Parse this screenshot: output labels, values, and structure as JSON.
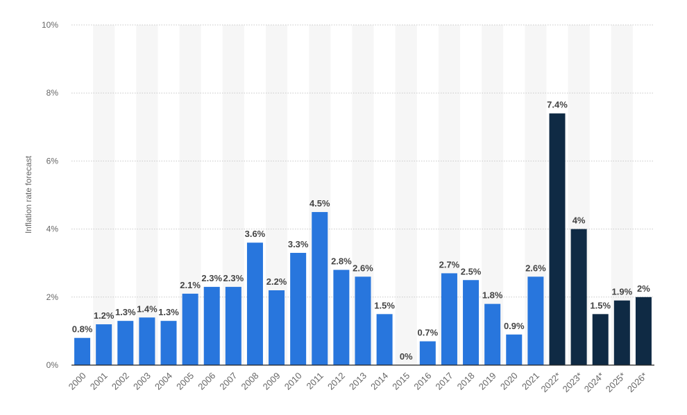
{
  "chart_data": {
    "type": "bar",
    "title": "",
    "xlabel": "",
    "ylabel": "Inflation rate forecast",
    "ylim": [
      0,
      10
    ],
    "yticks": [
      0,
      2,
      4,
      6,
      8,
      10
    ],
    "ytick_labels": [
      "0%",
      "2%",
      "4%",
      "6%",
      "8%",
      "10%"
    ],
    "grid": true,
    "categories": [
      "2000",
      "2001",
      "2002",
      "2003",
      "2004",
      "2005",
      "2006",
      "2007",
      "2008",
      "2009",
      "2010",
      "2011",
      "2012",
      "2013",
      "2014",
      "2015",
      "2016",
      "2017",
      "2018",
      "2019",
      "2020",
      "2021",
      "2022*",
      "2023*",
      "2024*",
      "2025*",
      "2026*"
    ],
    "values": [
      0.8,
      1.2,
      1.3,
      1.4,
      1.3,
      2.1,
      2.3,
      2.3,
      3.6,
      2.2,
      3.3,
      4.5,
      2.8,
      2.6,
      1.5,
      0,
      0.7,
      2.7,
      2.5,
      1.8,
      0.9,
      2.6,
      7.4,
      4,
      1.5,
      1.9,
      2
    ],
    "value_labels": [
      "0.8%",
      "1.2%",
      "1.3%",
      "1.4%",
      "1.3%",
      "2.1%",
      "2.3%",
      "2.3%",
      "3.6%",
      "2.2%",
      "3.3%",
      "4.5%",
      "2.8%",
      "2.6%",
      "1.5%",
      "0%",
      "0.7%",
      "2.7%",
      "2.5%",
      "1.8%",
      "0.9%",
      "2.6%",
      "7.4%",
      "4%",
      "1.5%",
      "1.9%",
      "2%"
    ],
    "forecast_from_index": 22,
    "colors": {
      "actual": "#2876dd",
      "forecast": "#0f2a44",
      "label": "#444444",
      "axis_text": "#666666"
    }
  }
}
